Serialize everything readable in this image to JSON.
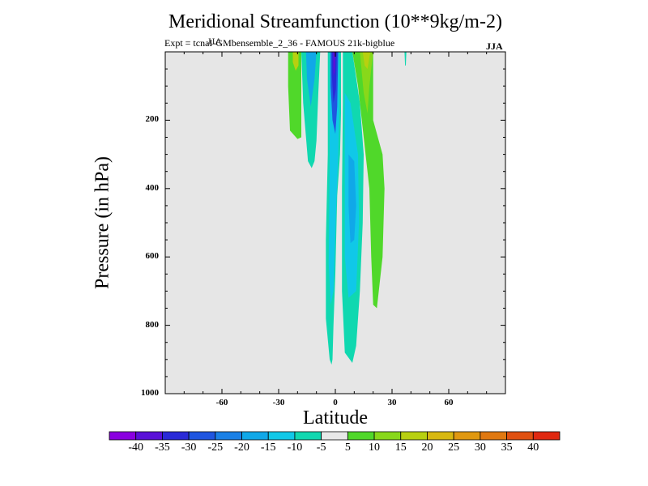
{
  "header": {
    "title": "Meridional Streamfunction (10**9kg/m-2)",
    "subtitle": "Expt = tcnaI-GMbensemble_2_36 - FAMOUS 21k-bigblue",
    "overlay_label": "JJA",
    "season": "JJA"
  },
  "chart_data": {
    "type": "heatmap",
    "title": "Meridional Streamfunction (10**9kg/m-2)",
    "xlabel": "Latitude",
    "ylabel": "Pressure (in hPa)",
    "xlim": [
      -90,
      90
    ],
    "ylim": [
      1000,
      0
    ],
    "x_ticks": [
      -60,
      -30,
      0,
      30,
      60
    ],
    "x_tick_labels": [
      "-60",
      "-30",
      "0",
      "30",
      "60"
    ],
    "y_ticks": [
      200,
      400,
      600,
      800,
      1000
    ],
    "y_tick_labels": [
      "200",
      "400",
      "600",
      "800",
      "1000"
    ],
    "colorbar": {
      "levels": [
        -40,
        -35,
        -30,
        -25,
        -20,
        -15,
        -10,
        -5,
        5,
        10,
        15,
        20,
        25,
        30,
        35,
        40
      ],
      "labels": [
        "-40",
        "-35",
        "-30",
        "-25",
        "-20",
        "-15",
        "-10",
        "-5",
        "5",
        "10",
        "15",
        "20",
        "25",
        "30",
        "35",
        "40"
      ],
      "colors": [
        "#8a00e0",
        "#5a10d8",
        "#2a2ad8",
        "#1f55e0",
        "#1a80e6",
        "#10a8e8",
        "#10c8e8",
        "#10d8b0",
        "#e8e8e8",
        "#50d82a",
        "#88d81a",
        "#b8d010",
        "#d8b810",
        "#e09810",
        "#e07810",
        "#e05010",
        "#e02810"
      ]
    },
    "background_color": "#e6e6e6",
    "features": [
      {
        "name": "green plume near 25S",
        "value_range": "5 to 10",
        "lat_range": [
          -25,
          -18
        ],
        "pressure_range": [
          0,
          250
        ]
      },
      {
        "name": "yellow core near 22S",
        "value_range": "10 to 15",
        "lat_range": [
          -22,
          -19
        ],
        "pressure_range": [
          0,
          50
        ]
      },
      {
        "name": "negative cell near 12S",
        "value_range": "-15 to -5",
        "lat_range": [
          -17,
          -8
        ],
        "pressure_range": [
          0,
          340
        ]
      },
      {
        "name": "equatorial negative core",
        "value_range": "-35 to -10",
        "lat_range": [
          -3,
          2
        ],
        "pressure_range": [
          0,
          300
        ]
      },
      {
        "name": "southern descending negative branch",
        "value_range": "-15 to -5",
        "lat_range": [
          -5,
          2
        ],
        "pressure_range": [
          300,
          915
        ]
      },
      {
        "name": "northern negative tongue",
        "value_range": "-20 to -5",
        "lat_range": [
          3,
          15
        ],
        "pressure_range": [
          0,
          910
        ]
      },
      {
        "name": "positive branch near 20N",
        "value_range": "5 to 15",
        "lat_range": [
          12,
          30
        ],
        "pressure_range": [
          0,
          750
        ]
      },
      {
        "name": "small cell near 37N",
        "value_range": "-5 to 5",
        "lat_range": [
          36,
          38
        ],
        "pressure_range": [
          0,
          40
        ]
      }
    ]
  }
}
